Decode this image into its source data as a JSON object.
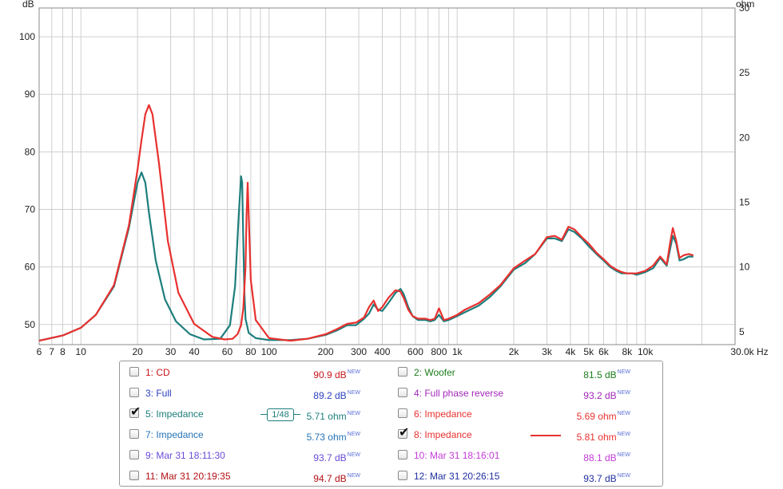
{
  "chart_data": {
    "type": "line",
    "left_axis_unit": "dB",
    "right_axis_unit": "ohm",
    "x_unit": "Hz",
    "x_scale": "log",
    "xlim": [
      6,
      30000
    ],
    "ylim_left": [
      46.5,
      105
    ],
    "ylim_right": [
      4,
      30
    ],
    "x_tick_labels": [
      {
        "v": 6,
        "t": "6"
      },
      {
        "v": 7,
        "t": "7"
      },
      {
        "v": 8,
        "t": "8"
      },
      {
        "v": 10,
        "t": "10"
      },
      {
        "v": 20,
        "t": "20"
      },
      {
        "v": 30,
        "t": "30"
      },
      {
        "v": 40,
        "t": "40"
      },
      {
        "v": 60,
        "t": "60"
      },
      {
        "v": 80,
        "t": "80"
      },
      {
        "v": 100,
        "t": "100"
      },
      {
        "v": 200,
        "t": "200"
      },
      {
        "v": 300,
        "t": "300"
      },
      {
        "v": 400,
        "t": "400"
      },
      {
        "v": 600,
        "t": "600"
      },
      {
        "v": 800,
        "t": "800"
      },
      {
        "v": 1000,
        "t": "1k"
      },
      {
        "v": 2000,
        "t": "2k"
      },
      {
        "v": 3000,
        "t": "3k"
      },
      {
        "v": 4000,
        "t": "4k"
      },
      {
        "v": 5000,
        "t": "5k"
      },
      {
        "v": 6000,
        "t": "6k"
      },
      {
        "v": 8000,
        "t": "8k"
      },
      {
        "v": 10000,
        "t": "10k"
      },
      {
        "v": 30000,
        "t": "30.0k Hz"
      }
    ],
    "y_tick_labels_left": [
      "50",
      "60",
      "70",
      "80",
      "90",
      "100"
    ],
    "y_tick_labels_right": [
      "5",
      "10",
      "15",
      "20",
      "25",
      "30"
    ],
    "grid": true,
    "series": [
      {
        "name": "5: Impedance",
        "color": "#1d7e7c",
        "x": [
          6,
          8,
          10,
          12,
          15,
          18,
          20,
          21,
          22,
          23,
          25,
          28,
          32,
          38,
          45,
          55,
          62,
          66,
          69,
          71,
          72,
          73,
          74,
          75,
          78,
          85,
          100,
          130,
          160,
          200,
          230,
          260,
          290,
          320,
          340,
          360,
          380,
          400,
          430,
          470,
          500,
          520,
          550,
          580,
          620,
          680,
          720,
          760,
          800,
          850,
          900,
          1000,
          1100,
          1300,
          1500,
          1700,
          2000,
          2300,
          2600,
          3000,
          3300,
          3600,
          3900,
          4200,
          4600,
          5000,
          5500,
          6000,
          6500,
          7000,
          7500,
          8000,
          8500,
          9000,
          10000,
          11000,
          12000,
          13000,
          13600,
          14000,
          14600,
          15200,
          16000,
          17000,
          18000
        ],
        "y": [
          4.3,
          4.7,
          5.3,
          6.3,
          8.5,
          13.0,
          16.5,
          17.3,
          16.5,
          14.2,
          10.5,
          7.5,
          5.8,
          4.8,
          4.4,
          4.45,
          5.5,
          8.5,
          14.0,
          17.0,
          16.5,
          12.0,
          8.0,
          6.0,
          4.9,
          4.5,
          4.35,
          4.35,
          4.45,
          4.75,
          5.1,
          5.5,
          5.5,
          6.0,
          6.4,
          7.1,
          6.7,
          6.6,
          7.2,
          8.0,
          8.3,
          7.9,
          6.9,
          6.2,
          5.9,
          5.9,
          5.8,
          5.9,
          6.3,
          5.8,
          5.9,
          6.2,
          6.5,
          7.0,
          7.7,
          8.5,
          9.8,
          10.3,
          11.0,
          12.2,
          12.2,
          12.0,
          12.9,
          12.7,
          12.2,
          11.6,
          11.0,
          10.5,
          10.0,
          9.7,
          9.5,
          9.5,
          9.5,
          9.4,
          9.6,
          9.9,
          10.7,
          10.1,
          11.5,
          12.4,
          11.8,
          10.5,
          10.6,
          10.8,
          10.8
        ]
      },
      {
        "name": "8: Impedance",
        "color": "#e8312f",
        "x": [
          6,
          8,
          10,
          12,
          15,
          18,
          20,
          21,
          22,
          23,
          24,
          26,
          29,
          33,
          40,
          50,
          58,
          64,
          68,
          71,
          73,
          75,
          76,
          77,
          78,
          80,
          85,
          100,
          130,
          160,
          200,
          230,
          260,
          290,
          320,
          340,
          360,
          380,
          400,
          430,
          470,
          500,
          520,
          550,
          580,
          620,
          680,
          720,
          760,
          800,
          850,
          900,
          1000,
          1100,
          1300,
          1500,
          1700,
          2000,
          2300,
          2600,
          3000,
          3300,
          3600,
          3900,
          4200,
          4600,
          5000,
          5500,
          6000,
          6500,
          7000,
          7500,
          8000,
          8500,
          9000,
          10000,
          11000,
          12000,
          13000,
          13600,
          14000,
          14600,
          15200,
          16000,
          17000,
          18000
        ],
        "y": [
          4.3,
          4.7,
          5.3,
          6.3,
          8.6,
          13.2,
          17.5,
          19.8,
          21.8,
          22.5,
          21.8,
          18.0,
          12.0,
          8.0,
          5.6,
          4.6,
          4.4,
          4.45,
          4.8,
          5.5,
          6.8,
          10.0,
          14.0,
          16.5,
          14.0,
          9.0,
          5.9,
          4.5,
          4.3,
          4.45,
          4.8,
          5.2,
          5.6,
          5.7,
          6.1,
          6.9,
          7.4,
          6.6,
          6.9,
          7.6,
          8.2,
          8.1,
          7.6,
          6.7,
          6.2,
          6.0,
          6.0,
          5.9,
          6.0,
          6.8,
          5.9,
          6.0,
          6.3,
          6.7,
          7.2,
          7.9,
          8.6,
          9.9,
          10.5,
          11.0,
          12.3,
          12.4,
          12.1,
          13.1,
          12.9,
          12.3,
          11.8,
          11.1,
          10.6,
          10.1,
          9.8,
          9.6,
          9.5,
          9.5,
          9.5,
          9.7,
          10.1,
          10.8,
          10.2,
          12.0,
          13.0,
          12.0,
          10.7,
          10.9,
          11.0,
          10.9
        ]
      }
    ]
  },
  "legend": {
    "items": [
      {
        "label": "1: CD",
        "value": "90.9 dB",
        "badge": "NEW",
        "checked": false,
        "color": "#c8161d"
      },
      {
        "label": "2: Woofer",
        "value": "81.5 dB",
        "badge": "NEW",
        "checked": false,
        "color": "#1c7d1c"
      },
      {
        "label": "3: Full",
        "value": "89.2 dB",
        "badge": "NEW",
        "checked": false,
        "color": "#2b3fbd"
      },
      {
        "label": "4: Full phase reverse",
        "value": "93.2 dB",
        "badge": "NEW",
        "checked": false,
        "color": "#a328b8"
      },
      {
        "label": "5: Impedance",
        "value": "5.71 ohm",
        "badge": "NEW",
        "checked": true,
        "color": "#1d7e7c"
      },
      {
        "label": "6: Impedance",
        "value": "5.69 ohm",
        "badge": "NEW",
        "checked": false,
        "color": "#e8312f"
      },
      {
        "label": "7: Impedance",
        "value": "5.73 ohm",
        "badge": "NEW",
        "checked": false,
        "color": "#2673b5"
      },
      {
        "label": "8: Impedance",
        "value": "5.81 ohm",
        "badge": "NEW",
        "checked": true,
        "color": "#e8312f"
      },
      {
        "label": "9: Mar 31 18:11:30",
        "value": "93.7 dB",
        "badge": "NEW",
        "checked": false,
        "color": "#6a4bd8"
      },
      {
        "label": "10: Mar 31 18:16:01",
        "value": "88.1 dB",
        "badge": "NEW",
        "checked": false,
        "color": "#c23bd6"
      },
      {
        "label": "11: Mar 31 20:19:35",
        "value": "94.7 dB",
        "badge": "NEW",
        "checked": false,
        "color": "#b10f14"
      },
      {
        "label": "12: Mar 31 20:26:15",
        "value": "93.7 dB",
        "badge": "NEW",
        "checked": false,
        "color": "#1f2f9e"
      }
    ],
    "smoothing_label_num": "1",
    "smoothing_label_den": "48",
    "badge_color": "#5a6fd6"
  }
}
